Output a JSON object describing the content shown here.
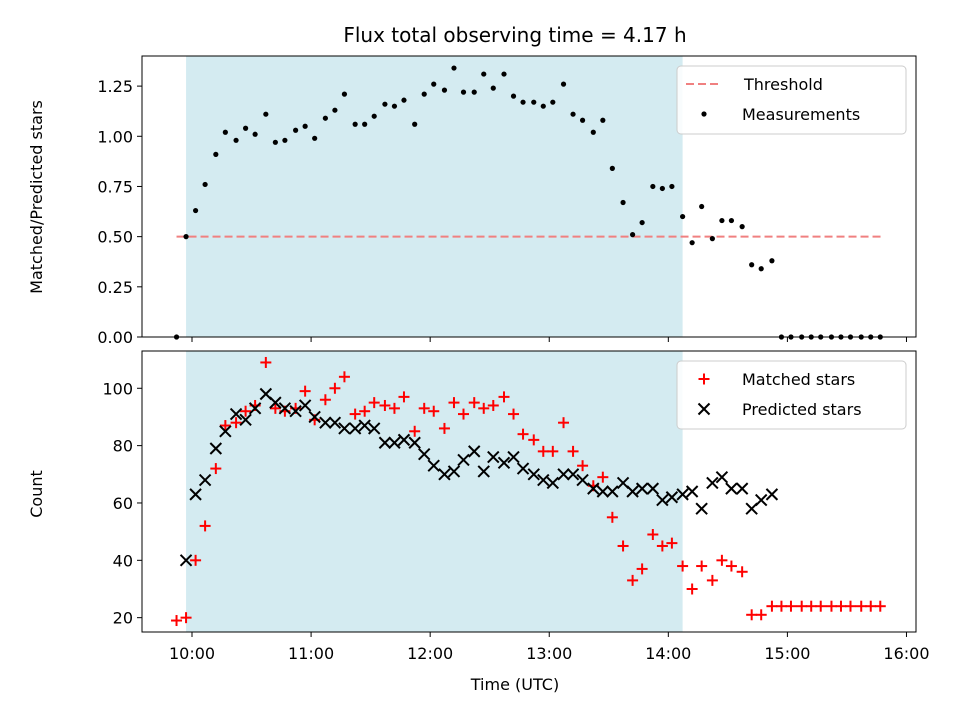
{
  "chart_data": {
    "type": "scatter",
    "title": "Flux total observing time = 4.17 h",
    "xlabel": "Time (UTC)",
    "x_unit": "decimal hours UTC",
    "xlim": [
      9.58,
      16.08
    ],
    "x_ticks": [
      {
        "value": 10,
        "label": "10:00"
      },
      {
        "value": 11,
        "label": "11:00"
      },
      {
        "value": 12,
        "label": "12:00"
      },
      {
        "value": 13,
        "label": "13:00"
      },
      {
        "value": 14,
        "label": "14:00"
      },
      {
        "value": 15,
        "label": "15:00"
      },
      {
        "value": 16,
        "label": "16:00"
      }
    ],
    "shaded_span": {
      "x_start": 9.95,
      "x_end": 14.12,
      "color": "#d4ebf1"
    },
    "panels": [
      {
        "ylabel": "Matched/Predicted stars",
        "ylim": [
          0,
          1.4
        ],
        "y_ticks": [
          {
            "value": 0.0,
            "label": "0.00"
          },
          {
            "value": 0.25,
            "label": "0.25"
          },
          {
            "value": 0.5,
            "label": "0.50"
          },
          {
            "value": 0.75,
            "label": "0.75"
          },
          {
            "value": 1.0,
            "label": "1.00"
          },
          {
            "value": 1.25,
            "label": "1.25"
          }
        ],
        "legend": {
          "position": "top-right",
          "entries": [
            "Threshold",
            "Measurements"
          ]
        },
        "threshold": {
          "name": "Threshold",
          "y": 0.5,
          "x_start": 9.87,
          "x_end": 15.8,
          "color": "#f08080"
        },
        "series": [
          {
            "name": "Measurements",
            "marker": "dot",
            "color": "#000000",
            "x": [
              9.87,
              9.95,
              10.03,
              10.11,
              10.2,
              10.28,
              10.37,
              10.45,
              10.53,
              10.62,
              10.7,
              10.78,
              10.87,
              10.95,
              11.03,
              11.12,
              11.2,
              11.28,
              11.37,
              11.45,
              11.53,
              11.62,
              11.7,
              11.78,
              11.87,
              11.95,
              12.03,
              12.12,
              12.2,
              12.28,
              12.37,
              12.45,
              12.53,
              12.62,
              12.7,
              12.78,
              12.87,
              12.95,
              13.03,
              13.12,
              13.2,
              13.28,
              13.37,
              13.45,
              13.53,
              13.62,
              13.7,
              13.78,
              13.87,
              13.95,
              14.03,
              14.12,
              14.2,
              14.28,
              14.37,
              14.45,
              14.53,
              14.62,
              14.7,
              14.78,
              14.87,
              14.95,
              15.03,
              15.12,
              15.2,
              15.28,
              15.37,
              15.45,
              15.53,
              15.62,
              15.7,
              15.78
            ],
            "y": [
              0.0,
              0.5,
              0.63,
              0.76,
              0.91,
              1.02,
              0.98,
              1.04,
              1.01,
              1.11,
              0.97,
              0.98,
              1.03,
              1.05,
              0.99,
              1.09,
              1.13,
              1.21,
              1.06,
              1.06,
              1.1,
              1.16,
              1.15,
              1.18,
              1.06,
              1.21,
              1.26,
              1.23,
              1.34,
              1.22,
              1.22,
              1.31,
              1.24,
              1.31,
              1.2,
              1.17,
              1.17,
              1.15,
              1.17,
              1.26,
              1.11,
              1.08,
              1.02,
              1.08,
              0.84,
              0.67,
              0.51,
              0.57,
              0.75,
              0.74,
              0.75,
              0.6,
              0.47,
              0.65,
              0.49,
              0.58,
              0.58,
              0.55,
              0.36,
              0.34,
              0.38,
              0.0,
              0.0,
              0.0,
              0.0,
              0.0,
              0.0,
              0.0,
              0.0,
              0.0,
              0.0,
              0.0
            ]
          }
        ]
      },
      {
        "ylabel": "Count",
        "ylim": [
          15,
          113
        ],
        "y_ticks": [
          {
            "value": 20,
            "label": "20"
          },
          {
            "value": 40,
            "label": "40"
          },
          {
            "value": 60,
            "label": "60"
          },
          {
            "value": 80,
            "label": "80"
          },
          {
            "value": 100,
            "label": "100"
          }
        ],
        "legend": {
          "position": "top-right",
          "entries": [
            "Matched stars",
            "Predicted stars"
          ]
        },
        "series": [
          {
            "name": "Matched stars",
            "marker": "plus",
            "color": "#ff0000",
            "x": [
              9.87,
              9.95,
              10.03,
              10.11,
              10.2,
              10.28,
              10.37,
              10.45,
              10.53,
              10.62,
              10.7,
              10.78,
              10.87,
              10.95,
              11.03,
              11.12,
              11.2,
              11.28,
              11.37,
              11.45,
              11.53,
              11.62,
              11.7,
              11.78,
              11.87,
              11.95,
              12.03,
              12.12,
              12.2,
              12.28,
              12.37,
              12.45,
              12.53,
              12.62,
              12.7,
              12.78,
              12.87,
              12.95,
              13.03,
              13.12,
              13.2,
              13.28,
              13.37,
              13.45,
              13.53,
              13.62,
              13.7,
              13.78,
              13.87,
              13.95,
              14.03,
              14.12,
              14.2,
              14.28,
              14.37,
              14.45,
              14.53,
              14.62,
              14.7,
              14.78,
              14.87,
              14.95,
              15.03,
              15.12,
              15.2,
              15.28,
              15.37,
              15.45,
              15.53,
              15.62,
              15.7,
              15.78
            ],
            "y": [
              19,
              20,
              40,
              52,
              72,
              87,
              88,
              92,
              94,
              109,
              93,
              92,
              93,
              99,
              89,
              96,
              100,
              104,
              91,
              92,
              95,
              94,
              93,
              97,
              85,
              93,
              92,
              86,
              95,
              91,
              95,
              93,
              94,
              97,
              91,
              84,
              82,
              78,
              78,
              88,
              78,
              73,
              66,
              69,
              55,
              45,
              33,
              37,
              49,
              45,
              46,
              38,
              30,
              38,
              33,
              40,
              38,
              36,
              21,
              21,
              24,
              24,
              24,
              24,
              24,
              24,
              24,
              24,
              24,
              24,
              24,
              24
            ]
          },
          {
            "name": "Predicted stars",
            "marker": "x",
            "color": "#000000",
            "x": [
              9.95,
              10.03,
              10.11,
              10.2,
              10.28,
              10.37,
              10.45,
              10.53,
              10.62,
              10.7,
              10.78,
              10.87,
              10.95,
              11.03,
              11.12,
              11.2,
              11.28,
              11.37,
              11.45,
              11.53,
              11.62,
              11.7,
              11.78,
              11.87,
              11.95,
              12.03,
              12.12,
              12.2,
              12.28,
              12.37,
              12.45,
              12.53,
              12.62,
              12.7,
              12.78,
              12.87,
              12.95,
              13.03,
              13.12,
              13.2,
              13.28,
              13.37,
              13.45,
              13.53,
              13.62,
              13.7,
              13.78,
              13.87,
              13.95,
              14.03,
              14.12,
              14.2,
              14.28,
              14.37,
              14.45,
              14.53,
              14.62,
              14.7,
              14.78,
              14.87
            ],
            "y": [
              40,
              63,
              68,
              79,
              85,
              91,
              89,
              93,
              98,
              95,
              93,
              92,
              94,
              90,
              88,
              88,
              86,
              86,
              87,
              86,
              81,
              81,
              82,
              81,
              77,
              73,
              70,
              71,
              75,
              78,
              71,
              76,
              74,
              76,
              72,
              70,
              68,
              67,
              70,
              70,
              68,
              65,
              64,
              64,
              67,
              64,
              65,
              65,
              61,
              62,
              63,
              64,
              58,
              67,
              69,
              65,
              65,
              58,
              61,
              63
            ]
          }
        ]
      }
    ]
  }
}
